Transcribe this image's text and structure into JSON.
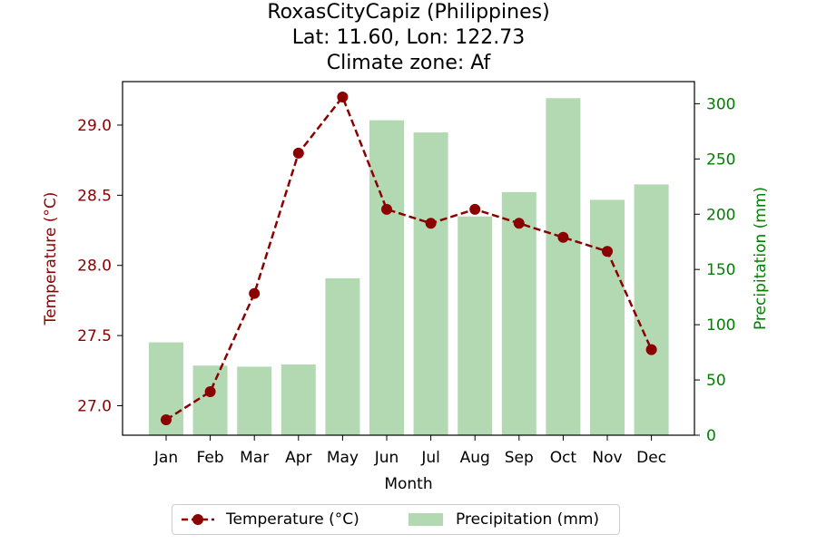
{
  "chart_data": {
    "type": "bar+line",
    "title_lines": [
      "RoxasCityCapiz (Philippines)",
      "Lat: 11.60, Lon: 122.73",
      "Climate zone: Af"
    ],
    "xlabel": "Month",
    "categories": [
      "Jan",
      "Feb",
      "Mar",
      "Apr",
      "May",
      "Jun",
      "Jul",
      "Aug",
      "Sep",
      "Oct",
      "Nov",
      "Dec"
    ],
    "temperature": {
      "name": "Temperature (°C)",
      "axis_label": "Temperature (°C)",
      "values": [
        26.9,
        27.1,
        27.8,
        28.8,
        29.2,
        28.4,
        28.3,
        28.4,
        28.3,
        28.2,
        28.1,
        27.4
      ],
      "ylim": [
        26.79,
        29.31
      ],
      "ticks": [
        27.0,
        27.5,
        28.0,
        28.5,
        29.0
      ],
      "tick_labels": [
        "27.0",
        "27.5",
        "28.0",
        "28.5",
        "29.0"
      ],
      "color": "#8b0000",
      "style": "dashed line with circle markers"
    },
    "precipitation": {
      "name": "Precipitation (mm)",
      "axis_label": "Precipitation (mm)",
      "values": [
        84,
        63,
        62,
        64,
        142,
        285,
        274,
        198,
        220,
        305,
        213,
        227
      ],
      "ylim": [
        0,
        320
      ],
      "ticks": [
        0,
        50,
        100,
        150,
        200,
        250,
        300
      ],
      "tick_labels": [
        "0",
        "50",
        "100",
        "150",
        "200",
        "250",
        "300"
      ],
      "color": "#b3d9b3",
      "axis_color": "#008000"
    },
    "legend": {
      "placement": "below",
      "entries": [
        "Temperature (°C)",
        "Precipitation (mm)"
      ]
    },
    "grid": false
  }
}
